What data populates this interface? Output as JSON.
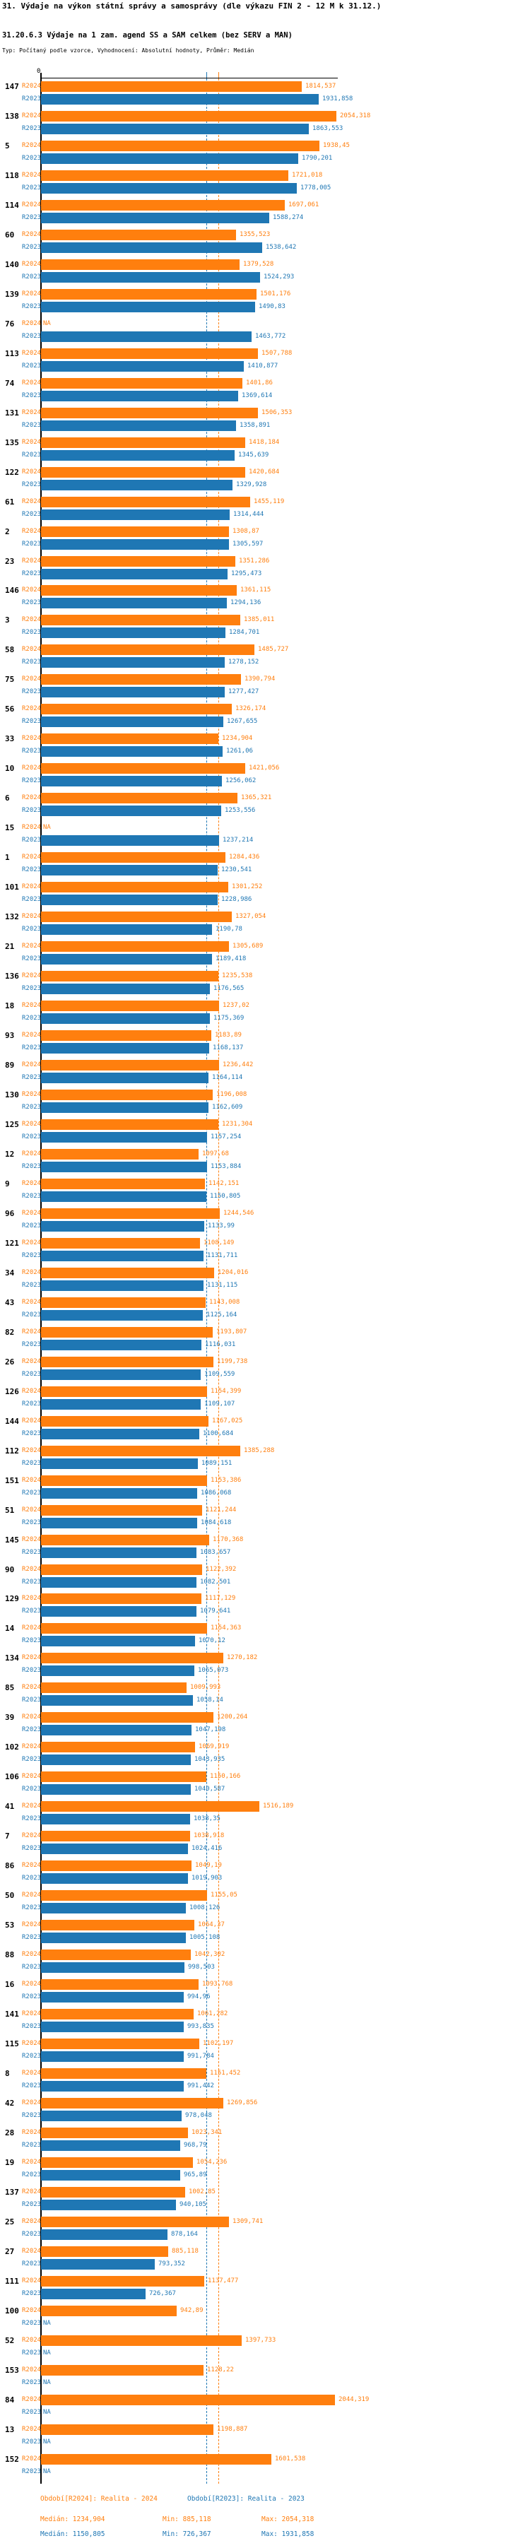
{
  "header": {
    "title": "31. Výdaje na výkon státní správy a samosprávy (dle výkazu FIN 2 - 12 M k 31.12.)",
    "subtitle": "31.20.6.3 Výdaje na 1 zam. agend SS a SAM celkem (bez SERV a MAN)",
    "type_line": "Typ: Počítaný podle vzorce, Vyhodnocení: Absolutní hodnoty, Průměr: Medián"
  },
  "colors": {
    "r2024": "#ff7f0e",
    "r2023": "#1f77b4",
    "axis": "#000000"
  },
  "chart_data": {
    "type": "bar",
    "orientation": "horizontal",
    "axis": {
      "zero_label": "0",
      "max_value": 2054.318,
      "grid": false
    },
    "series": [
      {
        "name": "R2024",
        "color": "#ff7f0e",
        "median": 1234.904
      },
      {
        "name": "R2023",
        "color": "#1f77b4",
        "median": 1150.805
      }
    ],
    "na_label": "NA",
    "groups": [
      {
        "id": "147",
        "r2024": "1814,537",
        "r2023": "1931,858"
      },
      {
        "id": "138",
        "r2024": "2054,318",
        "r2023": "1863,553"
      },
      {
        "id": "5",
        "r2024": "1938,45",
        "r2023": "1790,201"
      },
      {
        "id": "118",
        "r2024": "1721,018",
        "r2023": "1778,005"
      },
      {
        "id": "114",
        "r2024": "1697,061",
        "r2023": "1588,274"
      },
      {
        "id": "60",
        "r2024": "1355,523",
        "r2023": "1538,642"
      },
      {
        "id": "140",
        "r2024": "1379,528",
        "r2023": "1524,293"
      },
      {
        "id": "139",
        "r2024": "1501,176",
        "r2023": "1490,83"
      },
      {
        "id": "76",
        "r2024": null,
        "r2023": "1463,772"
      },
      {
        "id": "113",
        "r2024": "1507,788",
        "r2023": "1410,877"
      },
      {
        "id": "74",
        "r2024": "1401,86",
        "r2023": "1369,614"
      },
      {
        "id": "131",
        "r2024": "1506,353",
        "r2023": "1358,891"
      },
      {
        "id": "135",
        "r2024": "1418,184",
        "r2023": "1345,639"
      },
      {
        "id": "122",
        "r2024": "1420,684",
        "r2023": "1329,928"
      },
      {
        "id": "61",
        "r2024": "1455,119",
        "r2023": "1314,444"
      },
      {
        "id": "2",
        "r2024": "1308,87",
        "r2023": "1305,597"
      },
      {
        "id": "23",
        "r2024": "1351,286",
        "r2023": "1295,473"
      },
      {
        "id": "146",
        "r2024": "1361,115",
        "r2023": "1294,136"
      },
      {
        "id": "3",
        "r2024": "1385,011",
        "r2023": "1284,701"
      },
      {
        "id": "58",
        "r2024": "1485,727",
        "r2023": "1278,152"
      },
      {
        "id": "75",
        "r2024": "1390,794",
        "r2023": "1277,427"
      },
      {
        "id": "56",
        "r2024": "1326,174",
        "r2023": "1267,655"
      },
      {
        "id": "33",
        "r2024": "1234,904",
        "r2023": "1261,06"
      },
      {
        "id": "10",
        "r2024": "1421,056",
        "r2023": "1256,062"
      },
      {
        "id": "6",
        "r2024": "1365,321",
        "r2023": "1253,556"
      },
      {
        "id": "15",
        "r2024": null,
        "r2023": "1237,214"
      },
      {
        "id": "1",
        "r2024": "1284,436",
        "r2023": "1230,541"
      },
      {
        "id": "101",
        "r2024": "1301,252",
        "r2023": "1228,986"
      },
      {
        "id": "132",
        "r2024": "1327,054",
        "r2023": "1190,78"
      },
      {
        "id": "21",
        "r2024": "1305,689",
        "r2023": "1189,418"
      },
      {
        "id": "136",
        "r2024": "1235,538",
        "r2023": "1176,565"
      },
      {
        "id": "18",
        "r2024": "1237,02",
        "r2023": "1175,369"
      },
      {
        "id": "93",
        "r2024": "1183,89",
        "r2023": "1168,137"
      },
      {
        "id": "89",
        "r2024": "1236,442",
        "r2023": "1164,114"
      },
      {
        "id": "130",
        "r2024": "1196,008",
        "r2023": "1162,609"
      },
      {
        "id": "125",
        "r2024": "1231,304",
        "r2023": "1157,254"
      },
      {
        "id": "12",
        "r2024": "1097,68",
        "r2023": "1153,884"
      },
      {
        "id": "9",
        "r2024": "1142,151",
        "r2023": "1150,805"
      },
      {
        "id": "96",
        "r2024": "1244,546",
        "r2023": "1133,99"
      },
      {
        "id": "121",
        "r2024": "1108,149",
        "r2023": "1131,711"
      },
      {
        "id": "34",
        "r2024": "1204,016",
        "r2023": "1131,115"
      },
      {
        "id": "43",
        "r2024": "1143,008",
        "r2023": "1125,164"
      },
      {
        "id": "82",
        "r2024": "1193,807",
        "r2023": "1116,031"
      },
      {
        "id": "26",
        "r2024": "1199,738",
        "r2023": "1109,559"
      },
      {
        "id": "126",
        "r2024": "1154,399",
        "r2023": "1109,107"
      },
      {
        "id": "144",
        "r2024": "1167,025",
        "r2023": "1100,684"
      },
      {
        "id": "112",
        "r2024": "1385,288",
        "r2023": "1089,151"
      },
      {
        "id": "151",
        "r2024": "1153,386",
        "r2023": "1086,068"
      },
      {
        "id": "51",
        "r2024": "1121,244",
        "r2023": "1084,618"
      },
      {
        "id": "145",
        "r2024": "1170,368",
        "r2023": "1083,657"
      },
      {
        "id": "90",
        "r2024": "1122,392",
        "r2023": "1082,501"
      },
      {
        "id": "129",
        "r2024": "1117,129",
        "r2023": "1079,641"
      },
      {
        "id": "14",
        "r2024": "1154,363",
        "r2023": "1070,12"
      },
      {
        "id": "134",
        "r2024": "1270,182",
        "r2023": "1065,073"
      },
      {
        "id": "85",
        "r2024": "1009,993",
        "r2023": "1058,14"
      },
      {
        "id": "39",
        "r2024": "1200,264",
        "r2023": "1047,198"
      },
      {
        "id": "102",
        "r2024": "1069,919",
        "r2023": "1043,935"
      },
      {
        "id": "106",
        "r2024": "1150,166",
        "r2023": "1040,587"
      },
      {
        "id": "41",
        "r2024": "1516,189",
        "r2023": "1038,35"
      },
      {
        "id": "7",
        "r2024": "1038,918",
        "r2023": "1024,416"
      },
      {
        "id": "86",
        "r2024": "1049,19",
        "r2023": "1019,903"
      },
      {
        "id": "50",
        "r2024": "1155,05",
        "r2023": "1008,126"
      },
      {
        "id": "53",
        "r2024": "1064,37",
        "r2023": "1005,108"
      },
      {
        "id": "88",
        "r2024": "1042,302",
        "r2023": "998,503"
      },
      {
        "id": "16",
        "r2024": "1093,768",
        "r2023": "994,96"
      },
      {
        "id": "141",
        "r2024": "1061,282",
        "r2023": "993,835"
      },
      {
        "id": "115",
        "r2024": "1102,197",
        "r2023": "991,784"
      },
      {
        "id": "8",
        "r2024": "1151,452",
        "r2023": "991,442"
      },
      {
        "id": "42",
        "r2024": "1269,856",
        "r2023": "978,048"
      },
      {
        "id": "28",
        "r2024": "1023,341",
        "r2023": "968,79"
      },
      {
        "id": "19",
        "r2024": "1054,236",
        "r2023": "965,89"
      },
      {
        "id": "137",
        "r2024": "1002,85",
        "r2023": "940,105"
      },
      {
        "id": "25",
        "r2024": "1309,741",
        "r2023": "878,164"
      },
      {
        "id": "27",
        "r2024": "885,118",
        "r2023": "793,352"
      },
      {
        "id": "111",
        "r2024": "1137,477",
        "r2023": "726,367"
      },
      {
        "id": "100",
        "r2024": "942,89",
        "r2023": null
      },
      {
        "id": "52",
        "r2024": "1397,733",
        "r2023": null
      },
      {
        "id": "153",
        "r2024": "1128,22",
        "r2023": null
      },
      {
        "id": "84",
        "r2024": "2044,319",
        "r2023": null
      },
      {
        "id": "13",
        "r2024": "1198,887",
        "r2023": null
      },
      {
        "id": "152",
        "r2024": "1601,538",
        "r2023": null
      }
    ]
  },
  "legend": {
    "r2024": {
      "period": "Období[R2024]: Realita - 2024",
      "median": "Medián: 1234,904",
      "min": "Min: 885,118",
      "max": "Max: 2054,318"
    },
    "r2023": {
      "period": "Období[R2023]: Realita - 2023",
      "median": "Medián: 1150,805",
      "min": "Min: 726,367",
      "max": "Max: 1931,858"
    }
  }
}
